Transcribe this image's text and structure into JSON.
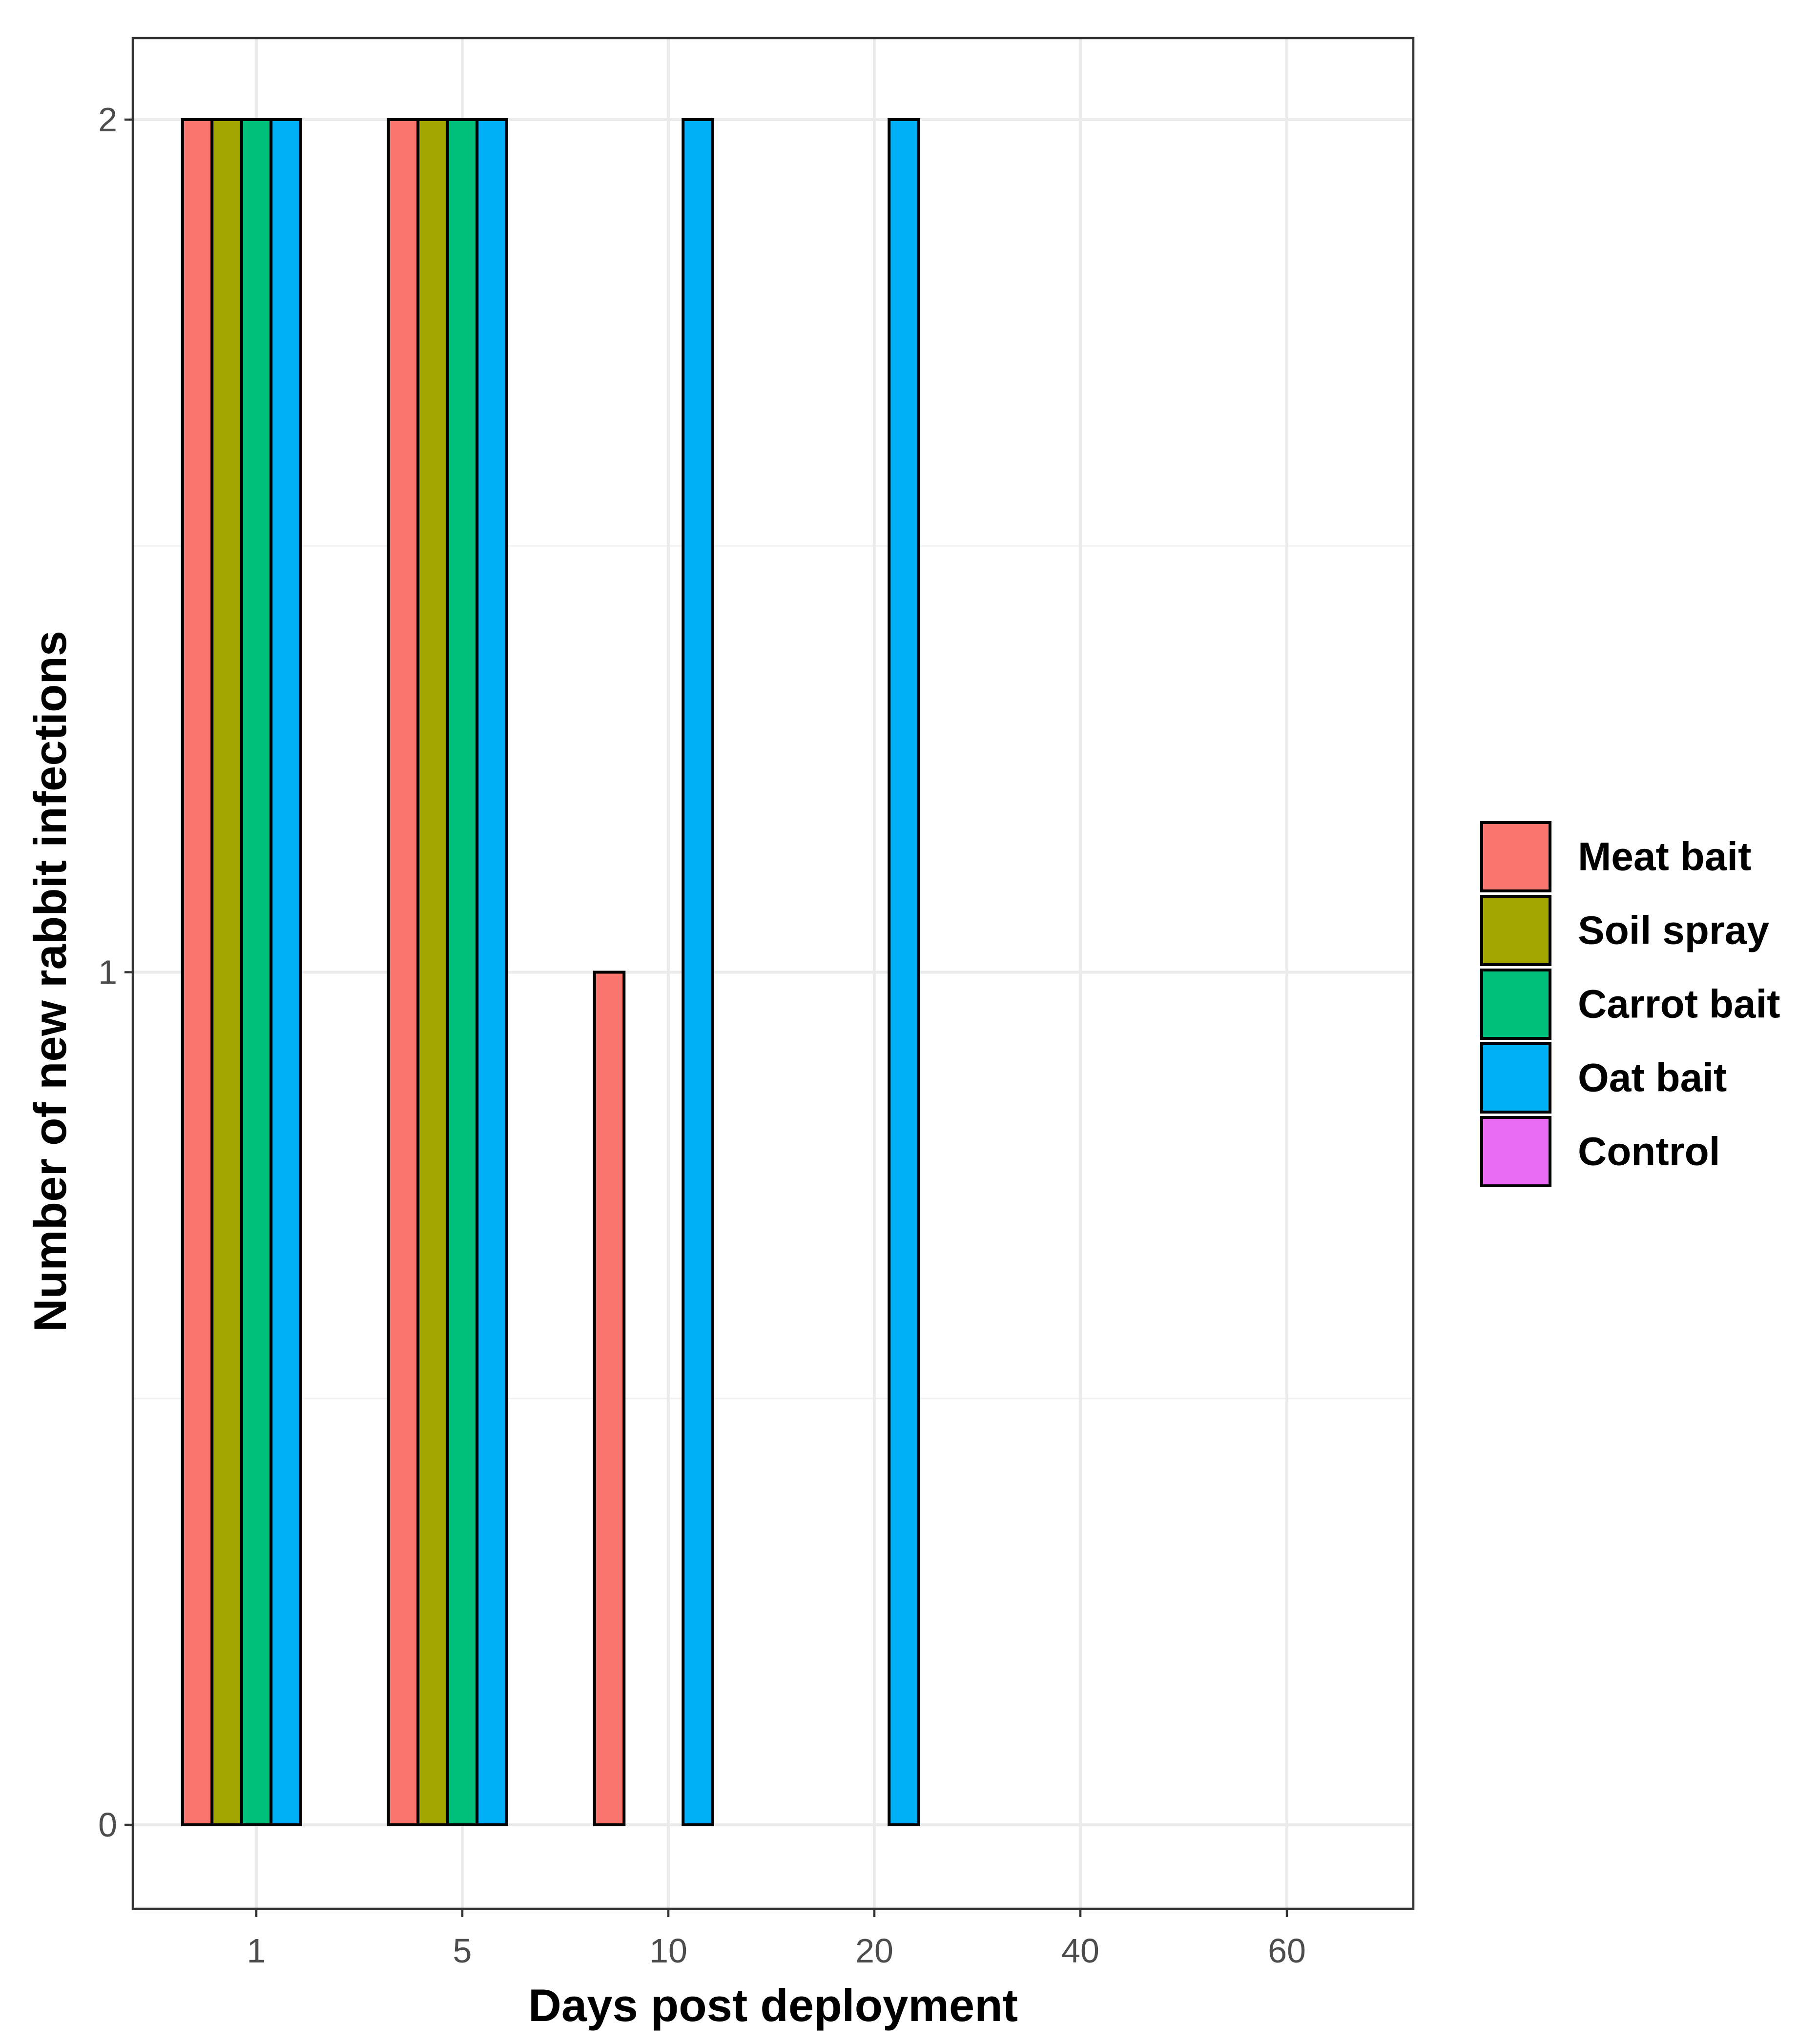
{
  "chart_data": {
    "type": "bar",
    "title": "",
    "xlabel": "Days post deployment",
    "ylabel": "Number of new rabbit infections",
    "categories": [
      "1",
      "5",
      "10",
      "20",
      "40",
      "60"
    ],
    "ylim": [
      0,
      2
    ],
    "yticks": [
      0,
      1,
      2
    ],
    "grid": true,
    "legend_position": "right",
    "series": [
      {
        "name": "Meat bait",
        "color": "#F8766D",
        "values": [
          2,
          2,
          1,
          0,
          0,
          0
        ]
      },
      {
        "name": "Soil spray",
        "color": "#A3A500",
        "values": [
          2,
          2,
          0,
          0,
          0,
          0
        ]
      },
      {
        "name": "Carrot bait",
        "color": "#00BF7D",
        "values": [
          2,
          2,
          0,
          0,
          0,
          0
        ]
      },
      {
        "name": "Oat bait",
        "color": "#00B0F6",
        "values": [
          2,
          2,
          2,
          2,
          0,
          0
        ]
      },
      {
        "name": "Control",
        "color": "#E76BF3",
        "values": [
          0,
          0,
          0,
          0,
          0,
          0
        ]
      }
    ]
  }
}
